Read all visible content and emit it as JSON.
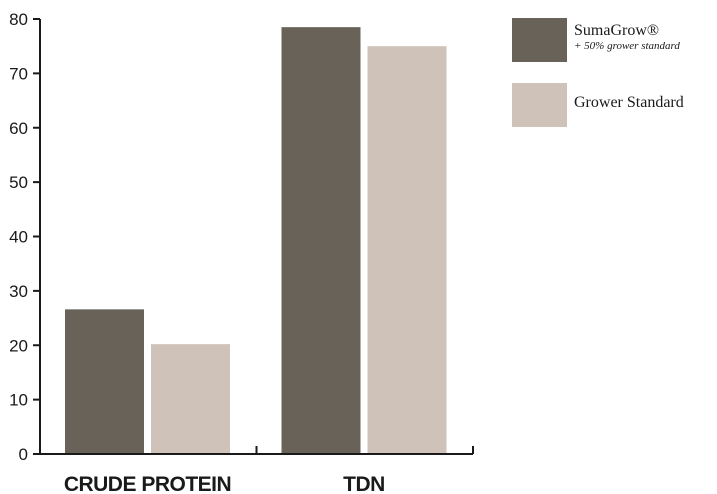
{
  "chart_data": {
    "type": "bar",
    "title": "",
    "xlabel": "",
    "ylabel": "",
    "categories": [
      "CRUDE PROTEIN",
      "TDN"
    ],
    "series": [
      {
        "name": "SumaGrow®",
        "subtitle": "+ 50% grower standard",
        "values": [
          26.6,
          78.5
        ],
        "color": "#686259"
      },
      {
        "name": "Grower Standard",
        "values": [
          20.2,
          75.0
        ],
        "color": "#cfc2b8"
      }
    ],
    "ylim": [
      0,
      80
    ],
    "yticks": [
      0,
      10,
      20,
      30,
      40,
      50,
      60,
      70,
      80
    ],
    "grid": false,
    "legend_position": "top-right"
  }
}
